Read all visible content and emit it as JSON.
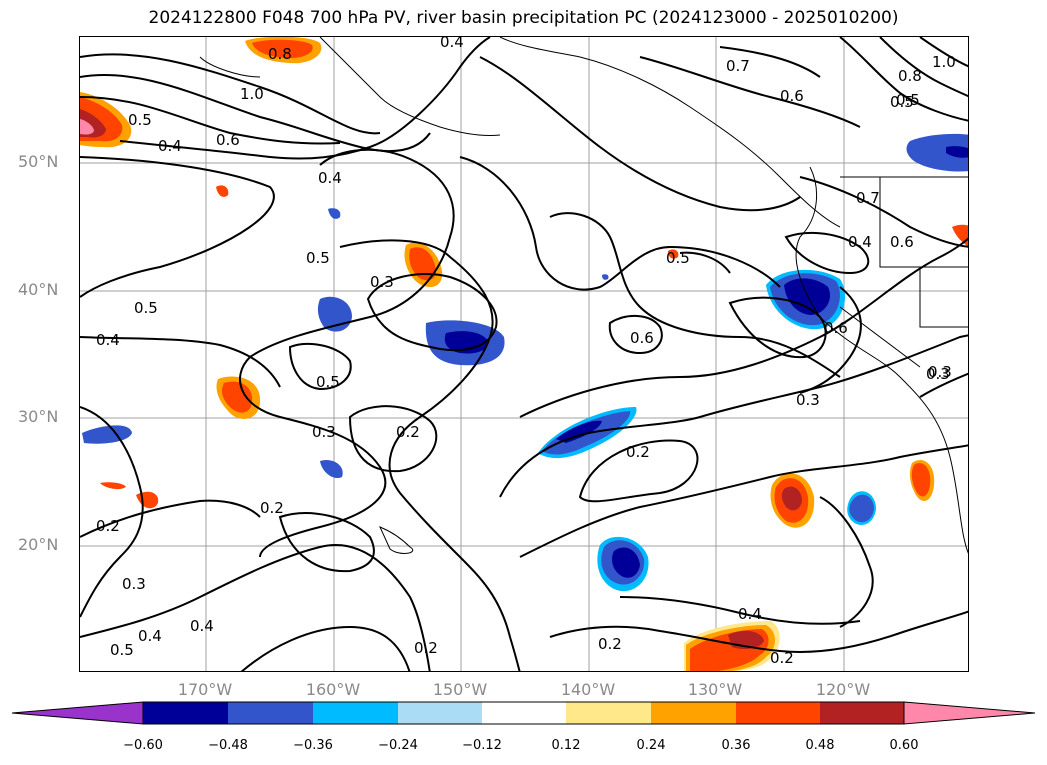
{
  "title": "2024122800 F048 700 hPa PV, river basin precipitation PC (2024123000 - 2025010200)",
  "lat_labels": [
    "50°N",
    "40°N",
    "30°N",
    "20°N"
  ],
  "lon_labels": [
    "170°W",
    "160°W",
    "150°W",
    "140°W",
    "130°W",
    "120°W"
  ],
  "colorbar": {
    "ticks": [
      "−0.60",
      "−0.48",
      "−0.36",
      "−0.24",
      "−0.12",
      "0.12",
      "0.24",
      "0.36",
      "0.48",
      "0.60"
    ],
    "colors": [
      "#9933cc",
      "#000099",
      "#3355cc",
      "#00bbff",
      "#aaddf5",
      "#ffffff",
      "#ffe88a",
      "#ffa200",
      "#ff4400",
      "#b22222",
      "#ff88aa"
    ],
    "extend": "both"
  },
  "contour_labels": [
    "0.8",
    "1.0",
    "0.5",
    "0.4",
    "0.6",
    "0.4",
    "0.5",
    "0.3",
    "0.5",
    "0.4",
    "0.5",
    "0.3",
    "0.2",
    "0.2",
    "0.2",
    "0.3",
    "0.4",
    "0.4",
    "0.5",
    "0.2",
    "0.7",
    "0.6",
    "0.5",
    "0.6",
    "0.3",
    "0.2",
    "0.2",
    "0.4",
    "0.2",
    "0.7",
    "0.4",
    "0.6",
    "0.6",
    "0.3",
    "0.5",
    "1.0",
    "0.8",
    "0.5",
    "0.3",
    "0.4"
  ],
  "colors": {
    "contour": "#000000",
    "grid": "#a0a0a0",
    "axis_label": "#8a8a8a"
  }
}
